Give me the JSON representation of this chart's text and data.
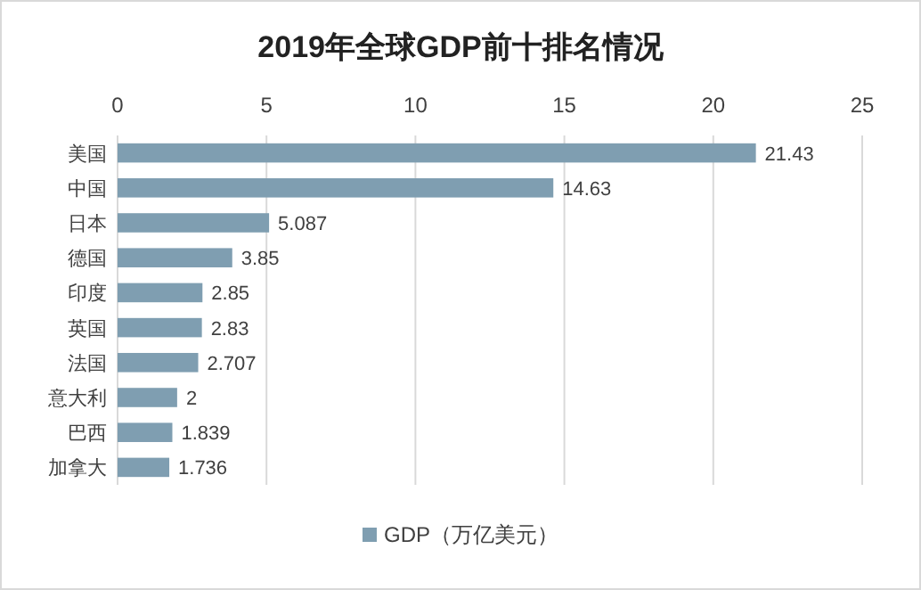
{
  "chart_data": {
    "type": "bar",
    "orientation": "horizontal",
    "title": "2019年全球GDP前十排名情况",
    "categories": [
      "美国",
      "中国",
      "日本",
      "德国",
      "印度",
      "英国",
      "法国",
      "意大利",
      "巴西",
      "加拿大"
    ],
    "series": [
      {
        "name": "GDP（万亿美元）",
        "color": "#7f9eb1",
        "values": [
          21.43,
          14.63,
          5.087,
          3.85,
          2.85,
          2.83,
          2.707,
          2,
          1.839,
          1.736
        ]
      }
    ],
    "xlim": [
      0,
      25
    ],
    "xticks": [
      0,
      5,
      10,
      15,
      20,
      25
    ],
    "grid": "x",
    "legend": "bottom",
    "data_labels": true
  }
}
